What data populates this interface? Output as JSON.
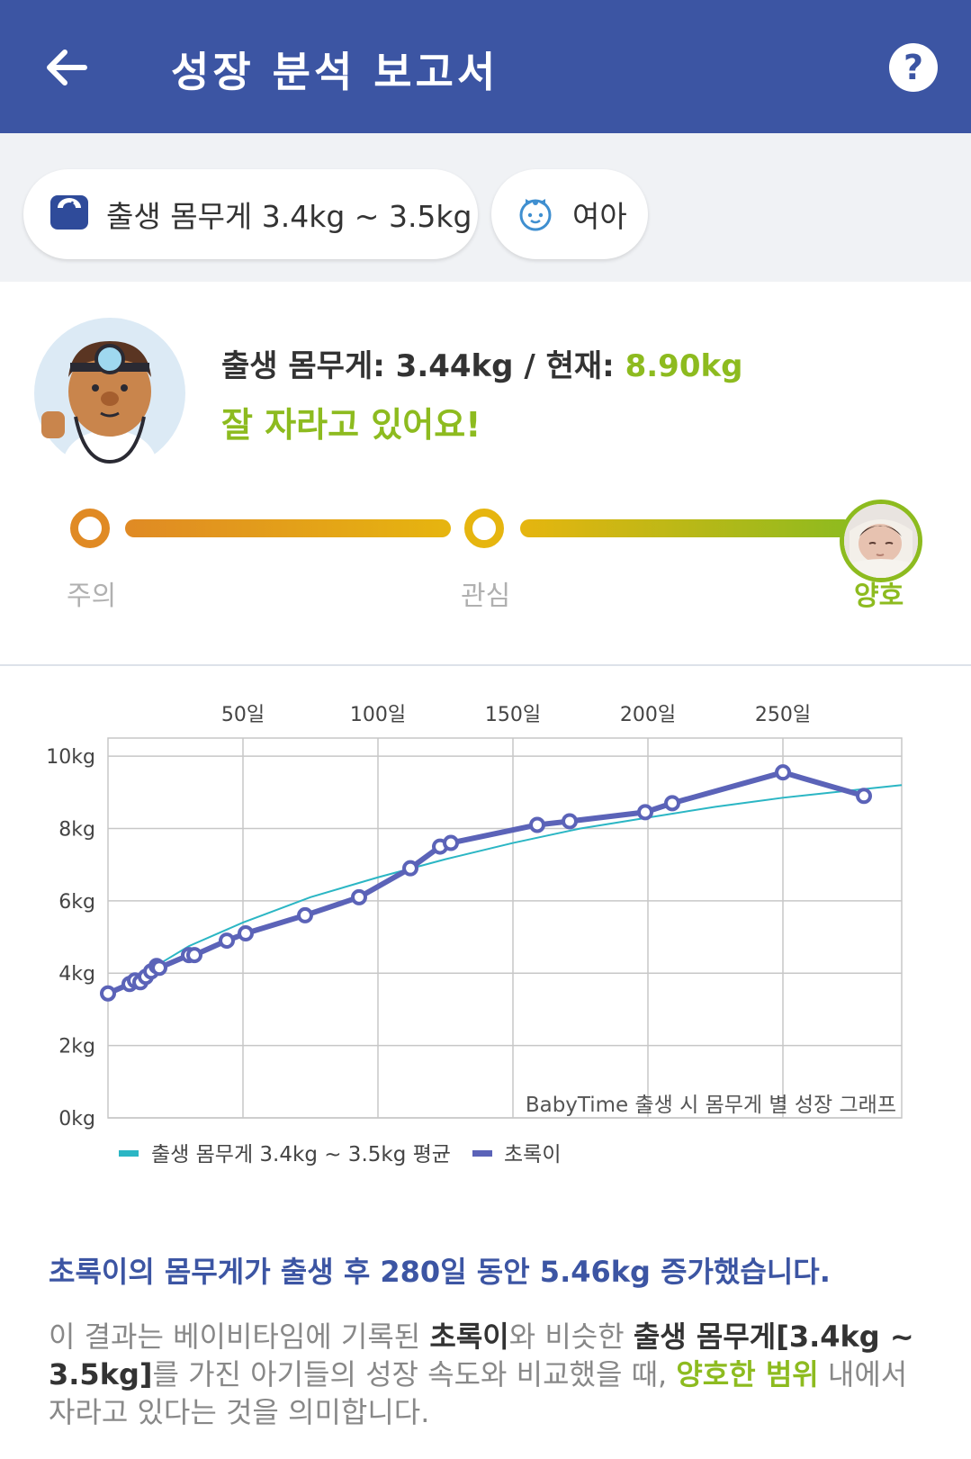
{
  "appbar": {
    "title": "성장 분석 보고서",
    "help_label": "?"
  },
  "filters": {
    "weight_range": "출생 몸무게 3.4kg ~ 3.5kg",
    "gender": "여아"
  },
  "summary": {
    "birth_label": "출생 몸무게: 3.44kg / 현재: ",
    "current_value": "8.90kg",
    "status_message": "잘 자라고 있어요!"
  },
  "levels": [
    "주의",
    "관심",
    "양호"
  ],
  "colors": {
    "brand": "#3c55a3",
    "good": "#8dbb1f",
    "caution": "#e08a24",
    "concern": "#e6b50f",
    "average_line": "#2bb6c4",
    "baby_line": "#5b63b8"
  },
  "chart_data": {
    "type": "line",
    "x_ticks": [
      50,
      100,
      150,
      200,
      250
    ],
    "x_tick_labels": [
      "50일",
      "100일",
      "150일",
      "200일",
      "250일"
    ],
    "y_ticks": [
      0,
      2,
      4,
      6,
      8,
      10
    ],
    "y_tick_labels": [
      "0kg",
      "2kg",
      "4kg",
      "6kg",
      "8kg",
      "10kg"
    ],
    "xlim": [
      0,
      294
    ],
    "ylim": [
      0,
      10.5
    ],
    "watermark": "BabyTime 출생 시 몸무게 별 성장 그래프",
    "grid": true,
    "legend_position": "bottom-left",
    "series": [
      {
        "name": "출생 몸무게 3.4kg ~ 3.5kg 평균",
        "x": [
          0,
          10,
          20,
          30,
          50,
          75,
          100,
          125,
          150,
          175,
          200,
          225,
          250,
          275,
          294
        ],
        "y": [
          3.4,
          3.9,
          4.3,
          4.75,
          5.4,
          6.1,
          6.65,
          7.15,
          7.6,
          8.0,
          8.3,
          8.6,
          8.85,
          9.05,
          9.2
        ]
      },
      {
        "name": "초록이",
        "x": [
          0,
          8,
          10,
          12,
          14,
          16,
          18,
          19,
          30,
          32,
          44,
          51,
          73,
          93,
          112,
          123,
          127,
          159,
          171,
          199,
          209,
          250,
          280
        ],
        "y": [
          3.44,
          3.7,
          3.8,
          3.75,
          3.9,
          4.05,
          4.2,
          4.15,
          4.5,
          4.5,
          4.9,
          5.1,
          5.6,
          6.1,
          6.9,
          7.5,
          7.6,
          8.1,
          8.2,
          8.45,
          8.7,
          9.55,
          8.9
        ]
      }
    ]
  },
  "result": {
    "title": "초록이의 몸무게가 출생 후 280일 동안 5.46kg 증가했습니다.",
    "desc_1": "이 결과는 베이비타임에 기록된 ",
    "desc_name": "초록이",
    "desc_2": "와 비슷한 ",
    "desc_range": "출생 몸무게[3.4kg ~ 3.5kg]",
    "desc_3": "를 가진 아기들의 성장 속도와 비교했을 때, ",
    "desc_good": "양호한 범위",
    "desc_4": " 내에서 자라고 있다는 것을 의미합니다."
  }
}
